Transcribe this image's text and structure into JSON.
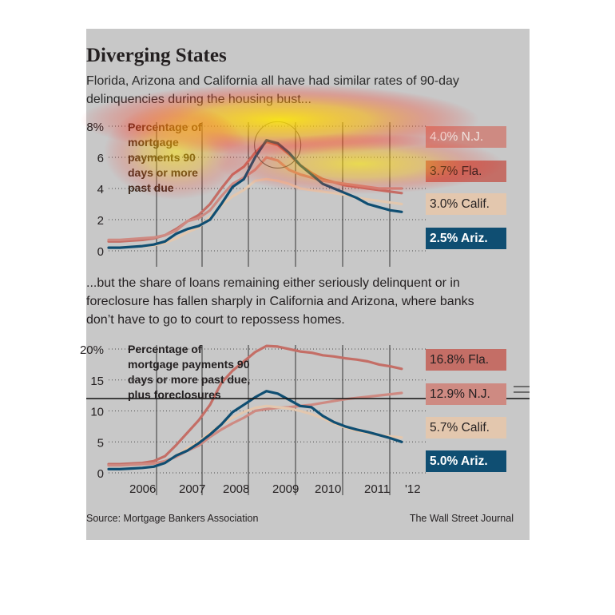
{
  "title": "Diverging States",
  "dek_top": "Florida, Arizona and California all have had similar rates of 90-day delinquencies during the housing bust...",
  "dek_bottom": "...but the share of loans remaining either seriously delinquent or in foreclosure has fallen sharply in California and Arizona, where banks don’t have to go to court to repossess homes.",
  "source": "Source: Mortgage Bankers Association",
  "credit": "The Wall Street Journal",
  "colors": {
    "background": "#c8c8c8",
    "fla": "#c46e66",
    "nj": "#ce8a82",
    "calif": "#e3c7ae",
    "ariz": "#0f4e72",
    "heatmap": "#ffd800"
  },
  "chart_data": [
    {
      "type": "line",
      "caption": "Percentage of mortgage payments 90 days or more past due",
      "x_ticks": [
        "2006",
        "2007",
        "2008",
        "2009",
        "2010",
        "2011",
        "'12"
      ],
      "x_range": [
        2005.75,
        2012.5
      ],
      "yticks": [
        "0",
        "2",
        "4",
        "6",
        "8%"
      ],
      "ylim": [
        0,
        8
      ],
      "grid": "dotted horizontal",
      "x": [
        2005.75,
        2006,
        2006.25,
        2006.5,
        2006.75,
        2007,
        2007.25,
        2007.5,
        2007.75,
        2008,
        2008.25,
        2008.5,
        2008.75,
        2009,
        2009.25,
        2009.5,
        2009.75,
        2010,
        2010.25,
        2010.5,
        2010.75,
        2011,
        2011.25,
        2011.5,
        2011.75,
        2012,
        2012.25
      ],
      "series": [
        {
          "name": "Fla.",
          "label": "3.7% Fla.",
          "color": "#c46e66",
          "values": [
            0.6,
            0.6,
            0.65,
            0.7,
            0.8,
            1.0,
            1.4,
            1.9,
            2.3,
            3.0,
            4.0,
            4.9,
            5.4,
            6.3,
            7.0,
            6.8,
            6.2,
            5.5,
            5.0,
            4.6,
            4.4,
            4.2,
            4.1,
            4.0,
            3.9,
            3.8,
            3.7
          ]
        },
        {
          "name": "N.J.",
          "label": "4.0% N.J.",
          "color": "#ce8a82",
          "values": [
            0.7,
            0.7,
            0.75,
            0.8,
            0.85,
            1.0,
            1.3,
            1.9,
            2.1,
            2.6,
            3.5,
            4.3,
            4.7,
            5.2,
            6.0,
            5.8,
            5.2,
            4.9,
            4.7,
            4.5,
            4.4,
            4.3,
            4.2,
            4.1,
            4.0,
            4.0,
            4.0
          ]
        },
        {
          "name": "Calif.",
          "label": "3.0% Calif.",
          "color": "#e3c7ae",
          "values": [
            0.2,
            0.2,
            0.25,
            0.3,
            0.35,
            0.5,
            0.8,
            1.2,
            1.5,
            2.2,
            2.9,
            3.5,
            3.9,
            4.5,
            4.6,
            4.5,
            4.3,
            4.0,
            3.9,
            3.8,
            3.7,
            3.6,
            3.4,
            3.3,
            3.2,
            3.1,
            3.0
          ]
        },
        {
          "name": "Ariz.",
          "label": "2.5% Ariz.",
          "color": "#0f4e72",
          "values": [
            0.2,
            0.2,
            0.25,
            0.3,
            0.4,
            0.6,
            1.1,
            1.4,
            1.6,
            2.0,
            3.0,
            4.1,
            4.6,
            6.0,
            7.1,
            6.9,
            6.3,
            5.5,
            4.9,
            4.3,
            4.0,
            3.7,
            3.4,
            3.0,
            2.8,
            2.6,
            2.5
          ]
        }
      ],
      "highlight": {
        "type": "circle",
        "x": 2009.5,
        "y": 6.8
      }
    },
    {
      "type": "line",
      "caption": "Percentage of mortgage payments 90 days or more past due, plus foreclosures",
      "x_ticks": [
        "2006",
        "2007",
        "2008",
        "2009",
        "2010",
        "2011",
        "'12"
      ],
      "x_range": [
        2005.75,
        2012.5
      ],
      "yticks": [
        "0",
        "5",
        "10",
        "15",
        "20%"
      ],
      "ylim": [
        0,
        20
      ],
      "grid": "dotted horizontal",
      "x": [
        2005.75,
        2006,
        2006.25,
        2006.5,
        2006.75,
        2007,
        2007.25,
        2007.5,
        2007.75,
        2008,
        2008.25,
        2008.5,
        2008.75,
        2009,
        2009.25,
        2009.5,
        2009.75,
        2010,
        2010.25,
        2010.5,
        2010.75,
        2011,
        2011.25,
        2011.5,
        2011.75,
        2012,
        2012.25
      ],
      "series": [
        {
          "name": "Fla.",
          "label": "16.8% Fla.",
          "color": "#c46e66",
          "values": [
            1.4,
            1.4,
            1.5,
            1.6,
            1.9,
            2.7,
            4.5,
            6.5,
            8.5,
            11.0,
            14.5,
            16.5,
            18.0,
            19.5,
            20.5,
            20.4,
            20.0,
            19.6,
            19.4,
            19.0,
            18.8,
            18.5,
            18.3,
            18.0,
            17.5,
            17.2,
            16.8
          ]
        },
        {
          "name": "N.J.",
          "label": "12.9% N.J.",
          "color": "#ce8a82",
          "values": [
            1.2,
            1.2,
            1.3,
            1.4,
            1.5,
            1.9,
            2.6,
            3.6,
            4.4,
            5.8,
            7.0,
            8.0,
            8.9,
            10.0,
            10.3,
            10.5,
            10.6,
            10.8,
            11.0,
            11.3,
            11.6,
            11.9,
            12.1,
            12.3,
            12.5,
            12.7,
            12.9
          ]
        },
        {
          "name": "Calif.",
          "label": "5.7% Calif.",
          "color": "#e3c7ae",
          "values": [
            0.6,
            0.6,
            0.7,
            0.8,
            1.0,
            1.6,
            2.8,
            4.0,
            5.0,
            6.5,
            7.8,
            8.9,
            9.8,
            10.5,
            10.8,
            10.6,
            10.4,
            10.0,
            9.5,
            8.8,
            8.0,
            7.3,
            6.8,
            6.4,
            6.1,
            5.9,
            5.7
          ]
        },
        {
          "name": "Ariz.",
          "label": "5.0% Ariz.",
          "color": "#0f4e72",
          "values": [
            0.6,
            0.6,
            0.7,
            0.8,
            1.0,
            1.6,
            2.8,
            3.6,
            4.8,
            6.2,
            7.8,
            9.8,
            11.0,
            12.2,
            13.2,
            12.8,
            11.8,
            10.8,
            10.6,
            9.2,
            8.2,
            7.5,
            7.0,
            6.6,
            6.1,
            5.6,
            5.0
          ]
        }
      ]
    }
  ]
}
